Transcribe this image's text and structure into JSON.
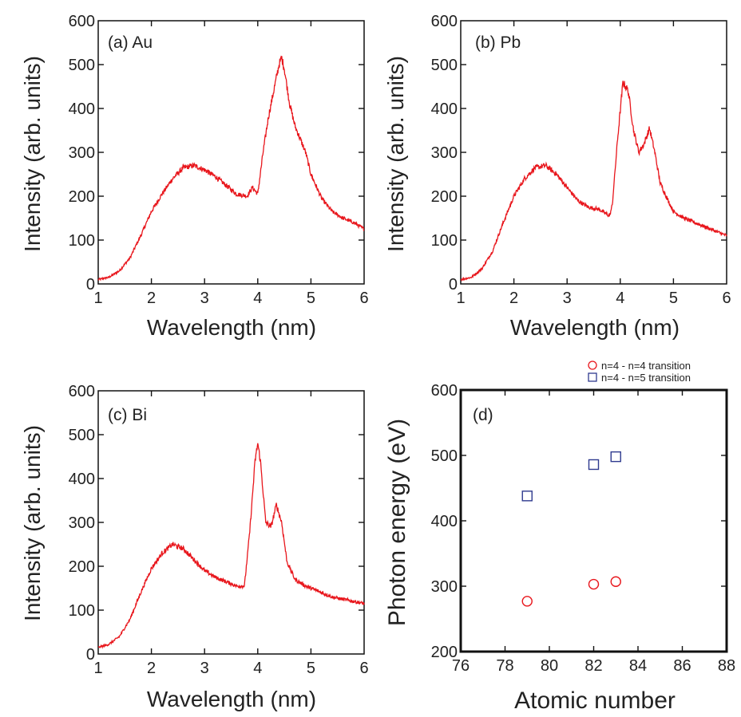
{
  "colors": {
    "line": "#e8161c",
    "circle": "#e8161c",
    "square": "#2f3a8f",
    "axis": "#111111"
  },
  "chart_data": [
    {
      "type": "line",
      "panel": "(a) Au",
      "xlabel": "Wavelength (nm)",
      "ylabel": "Intensity (arb. units)",
      "xlim": [
        1,
        6
      ],
      "ylim": [
        0,
        600
      ],
      "xticks": [
        "1",
        "2",
        "3",
        "4",
        "5",
        "6"
      ],
      "yticks": [
        "0",
        "100",
        "200",
        "300",
        "400",
        "500",
        "600"
      ],
      "grid": false,
      "series": [
        {
          "x": [
            1.0,
            1.2,
            1.4,
            1.6,
            1.8,
            2.0,
            2.2,
            2.4,
            2.6,
            2.8,
            3.0,
            3.2,
            3.4,
            3.6,
            3.8,
            3.9,
            4.0,
            4.1,
            4.2,
            4.3,
            4.4,
            4.45,
            4.5,
            4.6,
            4.7,
            4.8,
            4.9,
            5.0,
            5.2,
            5.4,
            5.6,
            5.8,
            6.0
          ],
          "y": [
            10,
            15,
            30,
            60,
            110,
            165,
            205,
            240,
            265,
            270,
            260,
            245,
            225,
            205,
            200,
            220,
            205,
            300,
            380,
            440,
            500,
            515,
            490,
            410,
            360,
            330,
            300,
            250,
            195,
            165,
            150,
            140,
            125
          ]
        }
      ]
    },
    {
      "type": "line",
      "panel": "(b) Pb",
      "xlabel": "Wavelength (nm)",
      "ylabel": "Intensity (arb. units)",
      "xlim": [
        1,
        6
      ],
      "ylim": [
        0,
        600
      ],
      "xticks": [
        "1",
        "2",
        "3",
        "4",
        "5",
        "6"
      ],
      "yticks": [
        "0",
        "100",
        "200",
        "300",
        "400",
        "500",
        "600"
      ],
      "grid": false,
      "series": [
        {
          "x": [
            1.0,
            1.2,
            1.4,
            1.6,
            1.8,
            2.0,
            2.2,
            2.4,
            2.6,
            2.8,
            3.0,
            3.2,
            3.4,
            3.6,
            3.8,
            3.85,
            3.95,
            4.05,
            4.15,
            4.25,
            4.35,
            4.45,
            4.55,
            4.65,
            4.75,
            4.9,
            5.0,
            5.2,
            5.4,
            5.6,
            5.8,
            6.0
          ],
          "y": [
            10,
            15,
            35,
            75,
            140,
            200,
            240,
            265,
            270,
            250,
            220,
            190,
            175,
            170,
            155,
            180,
            330,
            460,
            440,
            350,
            300,
            320,
            355,
            300,
            230,
            190,
            165,
            150,
            140,
            130,
            120,
            110
          ]
        }
      ]
    },
    {
      "type": "line",
      "panel": "(c) Bi",
      "xlabel": "Wavelength (nm)",
      "ylabel": "Intensity (arb. units)",
      "xlim": [
        1,
        6
      ],
      "ylim": [
        0,
        600
      ],
      "xticks": [
        "1",
        "2",
        "3",
        "4",
        "5",
        "6"
      ],
      "yticks": [
        "0",
        "100",
        "200",
        "300",
        "400",
        "500",
        "600"
      ],
      "grid": false,
      "series": [
        {
          "x": [
            1.0,
            1.2,
            1.4,
            1.6,
            1.8,
            2.0,
            2.2,
            2.4,
            2.6,
            2.8,
            3.0,
            3.2,
            3.4,
            3.6,
            3.75,
            3.85,
            3.95,
            4.0,
            4.05,
            4.15,
            4.25,
            4.35,
            4.45,
            4.55,
            4.7,
            4.9,
            5.0,
            5.2,
            5.4,
            5.6,
            5.8,
            6.0
          ],
          "y": [
            15,
            22,
            40,
            80,
            140,
            195,
            230,
            250,
            240,
            215,
            190,
            175,
            165,
            155,
            155,
            280,
            440,
            480,
            440,
            300,
            290,
            340,
            300,
            210,
            170,
            155,
            150,
            140,
            130,
            125,
            120,
            115
          ]
        }
      ]
    },
    {
      "type": "scatter",
      "panel": "(d)",
      "xlabel": "Atomic number",
      "ylabel": "Photon energy (eV)",
      "xlim": [
        76,
        88
      ],
      "ylim": [
        200,
        600
      ],
      "xticks": [
        "76",
        "78",
        "80",
        "82",
        "84",
        "86",
        "88"
      ],
      "yticks": [
        "200",
        "300",
        "400",
        "500",
        "600"
      ],
      "grid": false,
      "legend": "top-right, outside",
      "series": [
        {
          "name": "n=4 - n=4 transition",
          "marker": "circle",
          "x": [
            79,
            82,
            83
          ],
          "y": [
            277,
            303,
            307
          ]
        },
        {
          "name": "n=4 - n=5 transition",
          "marker": "square",
          "x": [
            79,
            82,
            83
          ],
          "y": [
            438,
            486,
            498
          ]
        }
      ]
    }
  ]
}
